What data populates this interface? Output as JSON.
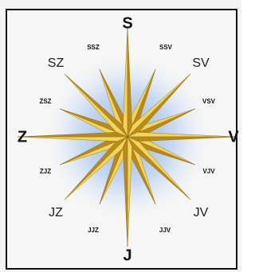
{
  "cardinal": {
    "north": "S",
    "east": "V",
    "south": "J",
    "west": "Z"
  },
  "intercardinal": {
    "northeast": "SV",
    "southeast": "JV",
    "southwest": "JZ",
    "northwest": "SZ"
  },
  "secondary": {
    "nne": "SSV",
    "ene": "VSV",
    "ese": "VJV",
    "sse": "JJV",
    "ssw": "JJZ",
    "wsw": "ZJZ",
    "wnw": "ZSZ",
    "nnw": "SSZ"
  }
}
